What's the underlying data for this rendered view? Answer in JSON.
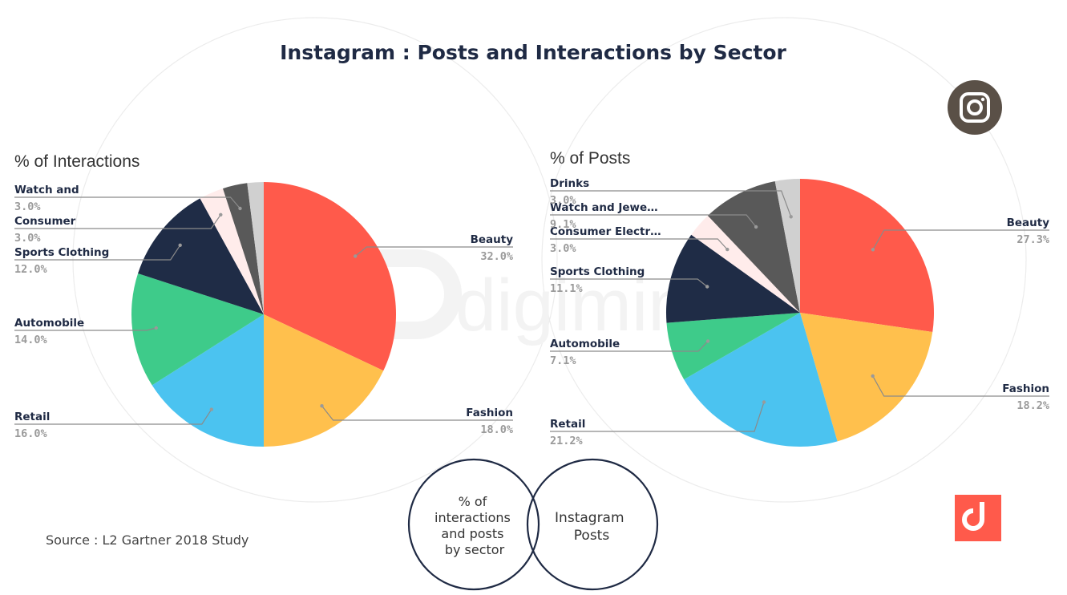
{
  "title": "Instagram : Posts and Interactions by Sector",
  "source": "Source : L2 Gartner 2018 Study",
  "watermark": "digimind",
  "venn": {
    "left_lines": [
      "% of",
      "interactions",
      "and posts",
      "by sector"
    ],
    "right_lines": [
      "Instagram",
      "Posts"
    ]
  },
  "colors": {
    "Beauty": "#ff5a4b",
    "Fashion": "#ffc04d",
    "Retail": "#4bc3f0",
    "Automobile": "#3ecb8a",
    "Sports Clothing": "#1f2c46",
    "Consumer Electronics": "#ffeceb",
    "Watch and Jewelry": "#595959",
    "Drinks": "#d0d0d0",
    "instagram_badge": "#5a5047",
    "brand": "#ff5a4b"
  },
  "icons": [
    "instagram-icon",
    "digimind-logo-icon"
  ],
  "chart_data": [
    {
      "type": "pie",
      "title": "% of Interactions",
      "slices": [
        {
          "key": "Beauty",
          "label": "Beauty",
          "value": 32.0,
          "value_label": "32.0%"
        },
        {
          "key": "Fashion",
          "label": "Fashion",
          "value": 18.0,
          "value_label": "18.0%"
        },
        {
          "key": "Retail",
          "label": "Retail",
          "value": 16.0,
          "value_label": "16.0%"
        },
        {
          "key": "Automobile",
          "label": "Automobile",
          "value": 14.0,
          "value_label": "14.0%"
        },
        {
          "key": "Sports Clothing",
          "label": "Sports Clothing",
          "value": 12.0,
          "value_label": "12.0%"
        },
        {
          "key": "Consumer Electronics",
          "label": "Consumer",
          "value": 3.0,
          "value_label": "3.0%"
        },
        {
          "key": "Watch and Jewelry",
          "label": "Watch and",
          "value": 3.0,
          "value_label": "3.0%"
        },
        {
          "key": "Drinks",
          "label": "",
          "value": 2.0,
          "value_label": ""
        }
      ]
    },
    {
      "type": "pie",
      "title": "% of Posts",
      "slices": [
        {
          "key": "Beauty",
          "label": "Beauty",
          "value": 27.3,
          "value_label": "27.3%"
        },
        {
          "key": "Fashion",
          "label": "Fashion",
          "value": 18.2,
          "value_label": "18.2%"
        },
        {
          "key": "Retail",
          "label": "Retail",
          "value": 21.2,
          "value_label": "21.2%"
        },
        {
          "key": "Automobile",
          "label": "Automobile",
          "value": 7.1,
          "value_label": "7.1%"
        },
        {
          "key": "Sports Clothing",
          "label": "Sports Clothing",
          "value": 11.1,
          "value_label": "11.1%"
        },
        {
          "key": "Consumer Electronics",
          "label": "Consumer Electr…",
          "value": 3.0,
          "value_label": "3.0%"
        },
        {
          "key": "Watch and Jewelry",
          "label": "Watch and Jewe…",
          "value": 9.1,
          "value_label": "9.1%"
        },
        {
          "key": "Drinks",
          "label": "Drinks",
          "value": 3.0,
          "value_label": "3.0%"
        }
      ]
    }
  ]
}
